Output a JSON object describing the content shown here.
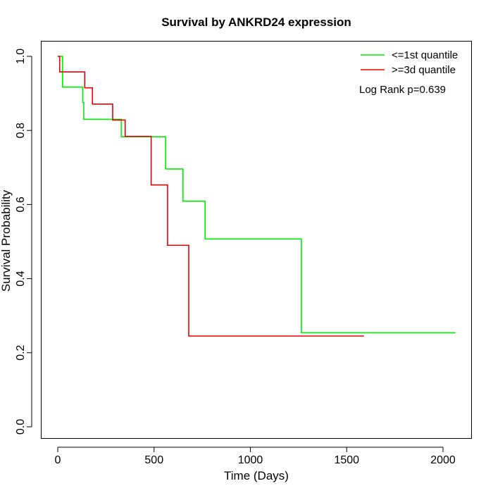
{
  "chart_data": {
    "type": "line",
    "title": "Survival by ANKRD24 expression",
    "xlabel": "Time (Days)",
    "ylabel": "Survival Probability",
    "xlim": [
      0,
      2070
    ],
    "ylim": [
      0,
      1
    ],
    "x_ticks": [
      0,
      500,
      1000,
      1500,
      2000
    ],
    "x_tick_labels": [
      "0",
      "500",
      "1000",
      "1500",
      "2000"
    ],
    "y_ticks": [
      0,
      0.2,
      0.4,
      0.6,
      0.8,
      1
    ],
    "y_tick_labels": [
      "0.0",
      "0.2",
      "0.4",
      "0.6",
      "0.8",
      "1.0"
    ],
    "grid": false,
    "legend_position": "top-right",
    "annotation": "Log Rank p=0.639",
    "series": [
      {
        "name": "<=1st quantile",
        "color": "#00ee00",
        "step": true,
        "x": [
          0,
          25,
          130,
          135,
          330,
          560,
          650,
          765,
          1265,
          2065
        ],
        "y": [
          1.0,
          0.917,
          0.875,
          0.83,
          0.783,
          0.696,
          0.609,
          0.507,
          0.254,
          0.254
        ]
      },
      {
        "name": ">=3d quantile",
        "color": "#ee0000",
        "step": true,
        "x": [
          0,
          10,
          140,
          180,
          285,
          350,
          485,
          570,
          680,
          1590
        ],
        "y": [
          1.0,
          0.958,
          0.915,
          0.871,
          0.828,
          0.784,
          0.653,
          0.49,
          0.245,
          0.245
        ]
      }
    ]
  }
}
